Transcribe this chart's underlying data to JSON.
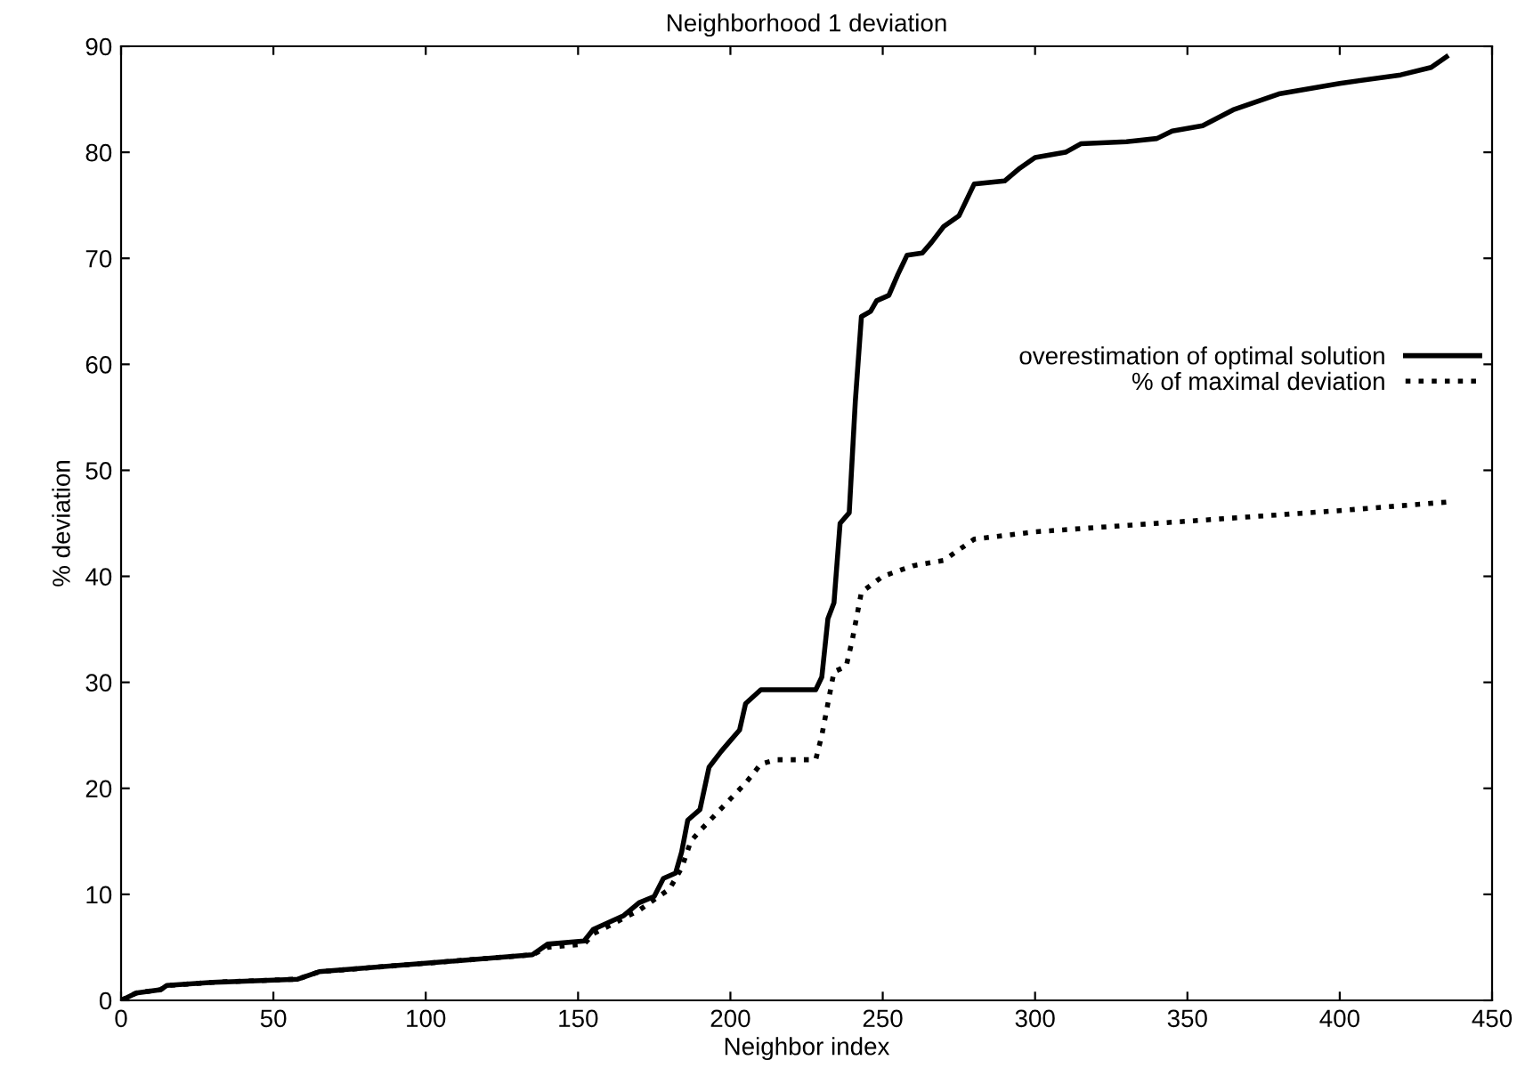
{
  "chart_data": {
    "type": "line",
    "title": "Neighborhood 1 deviation",
    "xlabel": "Neighbor index",
    "ylabel": "% deviation",
    "xlim": [
      0,
      450
    ],
    "xticks": [
      0,
      50,
      100,
      150,
      200,
      250,
      300,
      350,
      400,
      450
    ],
    "ylim": [
      0,
      90
    ],
    "yticks": [
      0,
      10,
      20,
      30,
      40,
      50,
      60,
      70,
      80,
      90
    ],
    "grid": false,
    "legend": "right",
    "marker": "none",
    "series": [
      {
        "name": "overestimation of optimal solution",
        "color": "#000000",
        "line_style": "solid",
        "x": [
          0,
          5,
          13,
          15,
          30,
          58,
          65,
          100,
          135,
          140,
          152,
          155,
          165,
          170,
          175,
          178,
          182,
          184,
          186,
          190,
          193,
          197,
          200,
          203,
          205,
          210,
          228,
          230,
          232,
          234,
          236,
          239,
          241,
          243,
          246,
          248,
          252,
          255,
          258,
          263,
          266,
          270,
          275,
          280,
          290,
          295,
          300,
          310,
          315,
          330,
          340,
          345,
          355,
          365,
          380,
          400,
          420,
          430,
          435
        ],
        "values": [
          0,
          0.7,
          1.0,
          1.4,
          1.7,
          2.0,
          2.7,
          3.5,
          4.3,
          5.3,
          5.6,
          6.7,
          8.0,
          9.2,
          9.8,
          11.5,
          12,
          14,
          17,
          18,
          22,
          23.5,
          24.5,
          25.5,
          28,
          29.3,
          29.3,
          30.5,
          36,
          37.5,
          45,
          46,
          56.5,
          64.5,
          65,
          66,
          66.5,
          68.5,
          70.3,
          70.5,
          71.5,
          73,
          74,
          77,
          77.3,
          78.5,
          79.5,
          80,
          80.8,
          81,
          81.3,
          82,
          82.5,
          84,
          85.5,
          86.5,
          87.3,
          88,
          89
        ]
      },
      {
        "name": "% of maximal deviation",
        "color": "#000000",
        "line_style": "dotted",
        "x": [
          0,
          5,
          13,
          15,
          30,
          58,
          65,
          100,
          135,
          140,
          152,
          155,
          160,
          170,
          180,
          184,
          187,
          190,
          195,
          200,
          205,
          210,
          215,
          228,
          230,
          234,
          238,
          240,
          243,
          250,
          260,
          270,
          280,
          300,
          350,
          400,
          435
        ],
        "values": [
          0,
          0.7,
          1.0,
          1.4,
          1.7,
          2.0,
          2.7,
          3.5,
          4.3,
          5.0,
          5.3,
          6.3,
          7,
          8.5,
          10.5,
          12.5,
          15,
          16,
          17.5,
          19,
          20.5,
          22.3,
          22.7,
          22.7,
          25,
          31,
          31.5,
          34,
          38.5,
          40,
          41,
          41.5,
          43.5,
          44.2,
          45.2,
          46.2,
          47
        ]
      }
    ]
  }
}
